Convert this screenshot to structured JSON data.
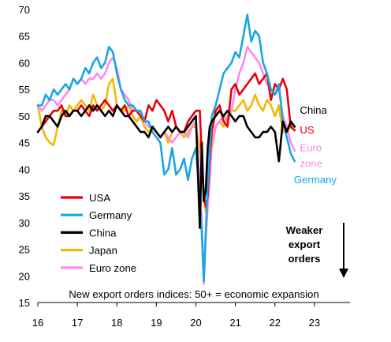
{
  "chart_data": {
    "type": "line",
    "caption": "New export orders indices: 50+ = economic expansion",
    "arrow_label": [
      "Weaker",
      "export",
      "orders"
    ],
    "xlim": [
      16,
      23.9
    ],
    "ylim": [
      15,
      70
    ],
    "x_ticks": [
      "16",
      "17",
      "18",
      "19",
      "20",
      "21",
      "22",
      "23"
    ],
    "x_tick_values": [
      16,
      17,
      18,
      19,
      20,
      21,
      22,
      23
    ],
    "y_ticks": [
      "15",
      "20",
      "25",
      "30",
      "35",
      "40",
      "45",
      "50",
      "55",
      "60",
      "65",
      "70"
    ],
    "y_tick_values": [
      15,
      20,
      25,
      30,
      35,
      40,
      45,
      50,
      55,
      60,
      65,
      70
    ],
    "legend": [
      {
        "label": "USA",
        "color": "#e8000b"
      },
      {
        "label": "Germany",
        "color": "#1aa7e0"
      },
      {
        "label": "China",
        "color": "#000000"
      },
      {
        "label": "Japan",
        "color": "#f5b700"
      },
      {
        "label": "Euro zone",
        "color": "#ff88ee"
      }
    ],
    "end_labels": [
      {
        "text": "China",
        "color": "#000000",
        "x": 22.55,
        "y": 51.0
      },
      {
        "text": "US",
        "color": "#e8000b",
        "x": 22.55,
        "y": 47.3
      },
      {
        "text": "Euro",
        "color": "#ff88ee",
        "x": 22.55,
        "y": 44.0
      },
      {
        "text": "zone",
        "color": "#ff88ee",
        "x": 22.55,
        "y": 41.0
      },
      {
        "text": "Germany",
        "color": "#1aa7e0",
        "x": 22.4,
        "y": 38.0
      }
    ],
    "series": [
      {
        "name": "Japan",
        "color": "#f5b700",
        "x": [
          16.0,
          16.1,
          16.2,
          16.3,
          16.4,
          16.5,
          16.6,
          16.7,
          16.8,
          16.9,
          17.0,
          17.1,
          17.2,
          17.3,
          17.4,
          17.5,
          17.6,
          17.7,
          17.8,
          17.9,
          18.0,
          18.1,
          18.2,
          18.3,
          18.4,
          18.5,
          18.6,
          18.7,
          18.8,
          18.9,
          19.0,
          19.1,
          19.2,
          19.3,
          19.4,
          19.5,
          19.6,
          19.7,
          19.8,
          19.9,
          20.0,
          20.1,
          20.15,
          20.2,
          20.25,
          20.3,
          20.35,
          20.4,
          20.5,
          20.6,
          20.7,
          20.8,
          20.9,
          21.0,
          21.1,
          21.2,
          21.3,
          21.4,
          21.5,
          21.6,
          21.7,
          21.8,
          21.9,
          22.0,
          22.1,
          22.2,
          22.3,
          22.4,
          22.5
        ],
        "y": [
          52,
          48,
          46,
          45,
          44.5,
          48,
          51,
          50,
          52,
          51,
          52,
          53,
          52,
          51,
          54,
          52,
          51,
          52,
          56,
          57,
          52,
          51,
          51,
          52,
          50,
          49,
          50,
          48,
          47,
          48,
          47,
          46,
          47,
          45,
          47,
          48,
          47,
          46,
          47,
          48,
          48,
          44,
          40,
          35,
          32,
          34,
          40,
          44,
          48,
          49,
          48,
          50,
          51,
          51,
          52,
          53,
          51,
          52,
          54,
          52,
          51,
          53,
          52,
          50,
          52,
          47,
          47,
          48,
          48
        ]
      },
      {
        "name": "Euro zone",
        "color": "#ff88ee",
        "x": [
          16.0,
          16.1,
          16.2,
          16.3,
          16.4,
          16.5,
          16.6,
          16.7,
          16.8,
          16.9,
          17.0,
          17.1,
          17.2,
          17.3,
          17.4,
          17.5,
          17.6,
          17.7,
          17.8,
          17.9,
          18.0,
          18.1,
          18.2,
          18.3,
          18.4,
          18.5,
          18.6,
          18.7,
          18.8,
          18.9,
          19.0,
          19.1,
          19.2,
          19.3,
          19.4,
          19.5,
          19.6,
          19.7,
          19.8,
          19.9,
          20.0,
          20.1,
          20.15,
          20.2,
          20.25,
          20.3,
          20.35,
          20.4,
          20.5,
          20.6,
          20.7,
          20.8,
          20.9,
          21.0,
          21.1,
          21.2,
          21.3,
          21.4,
          21.5,
          21.6,
          21.7,
          21.8,
          21.9,
          22.0,
          22.1,
          22.2,
          22.3,
          22.4,
          22.5
        ],
        "y": [
          52,
          51,
          52,
          53,
          53,
          52,
          53,
          54,
          55,
          57,
          56,
          57,
          56,
          57,
          57,
          58,
          57,
          58,
          60,
          61,
          59,
          55,
          54,
          53,
          51,
          51,
          50,
          49,
          48,
          48,
          47,
          46,
          47,
          46,
          45,
          46,
          47,
          47,
          46,
          48,
          49,
          38,
          30,
          18.5,
          27,
          33,
          38,
          45,
          48,
          49,
          50,
          49,
          51,
          55,
          58,
          60,
          63,
          62,
          61,
          60,
          58,
          56,
          55,
          54,
          55,
          50,
          48,
          45,
          43.5
        ]
      },
      {
        "name": "USA",
        "color": "#e8000b",
        "x": [
          16.0,
          16.1,
          16.2,
          16.3,
          16.4,
          16.5,
          16.6,
          16.7,
          16.8,
          16.9,
          17.0,
          17.1,
          17.2,
          17.3,
          17.4,
          17.5,
          17.6,
          17.7,
          17.8,
          17.9,
          18.0,
          18.1,
          18.2,
          18.3,
          18.4,
          18.5,
          18.6,
          18.7,
          18.8,
          18.9,
          19.0,
          19.1,
          19.2,
          19.3,
          19.4,
          19.5,
          19.6,
          19.7,
          19.8,
          19.9,
          20.0,
          20.1,
          20.15,
          20.2,
          20.25,
          20.3,
          20.35,
          20.4,
          20.5,
          20.6,
          20.7,
          20.8,
          20.9,
          21.0,
          21.1,
          21.2,
          21.3,
          21.4,
          21.5,
          21.6,
          21.7,
          21.8,
          21.9,
          22.0,
          22.1,
          22.2,
          22.3,
          22.4,
          22.5
        ],
        "y": [
          47,
          48,
          49,
          50,
          51,
          51,
          52,
          50,
          50,
          51,
          51,
          52,
          51,
          50,
          52,
          51,
          52,
          53,
          52,
          51,
          52,
          51,
          52,
          50,
          51,
          51,
          50,
          49,
          52,
          51,
          53,
          52,
          51,
          49,
          51,
          48,
          47,
          47,
          49,
          50,
          51,
          51,
          42,
          35,
          33,
          35,
          42,
          47,
          51,
          52,
          49,
          48,
          55,
          56,
          54,
          55,
          56,
          57,
          58,
          56,
          57,
          58,
          53,
          56,
          55,
          57,
          55,
          48,
          47.3
        ]
      },
      {
        "name": "Germany",
        "color": "#1aa7e0",
        "x": [
          16.0,
          16.1,
          16.2,
          16.3,
          16.4,
          16.5,
          16.6,
          16.7,
          16.8,
          16.9,
          17.0,
          17.1,
          17.2,
          17.3,
          17.4,
          17.5,
          17.6,
          17.7,
          17.8,
          17.9,
          18.0,
          18.1,
          18.2,
          18.3,
          18.4,
          18.5,
          18.6,
          18.7,
          18.8,
          18.9,
          19.0,
          19.1,
          19.2,
          19.3,
          19.4,
          19.5,
          19.6,
          19.7,
          19.8,
          19.9,
          20.0,
          20.1,
          20.15,
          20.2,
          20.25,
          20.3,
          20.35,
          20.4,
          20.5,
          20.6,
          20.7,
          20.8,
          20.9,
          21.0,
          21.1,
          21.2,
          21.3,
          21.4,
          21.5,
          21.6,
          21.7,
          21.8,
          21.9,
          22.0,
          22.1,
          22.2,
          22.3,
          22.4,
          22.5
        ],
        "y": [
          52,
          52,
          54,
          53,
          55,
          54,
          55,
          56,
          55,
          57,
          56,
          57,
          59,
          58,
          60,
          61,
          59,
          60,
          63,
          62,
          58,
          55,
          53,
          52,
          52,
          51,
          51,
          49,
          49,
          47,
          46,
          45,
          39,
          40,
          44,
          39,
          40,
          42,
          38,
          42,
          44,
          34,
          28,
          19,
          28,
          37,
          44,
          50,
          52,
          55,
          58,
          59,
          60,
          62,
          61,
          65,
          69,
          64,
          66,
          65,
          60,
          58,
          55,
          54,
          56,
          49,
          46,
          43,
          41.5
        ]
      },
      {
        "name": "China",
        "color": "#000000",
        "x": [
          16.0,
          16.1,
          16.2,
          16.3,
          16.4,
          16.5,
          16.6,
          16.7,
          16.8,
          16.9,
          17.0,
          17.1,
          17.2,
          17.3,
          17.4,
          17.5,
          17.6,
          17.7,
          17.8,
          17.9,
          18.0,
          18.1,
          18.2,
          18.3,
          18.4,
          18.5,
          18.6,
          18.7,
          18.8,
          18.9,
          19.0,
          19.1,
          19.2,
          19.3,
          19.4,
          19.5,
          19.6,
          19.7,
          19.8,
          19.9,
          20.0,
          20.1,
          20.15,
          20.2,
          20.25,
          20.3,
          20.35,
          20.4,
          20.5,
          20.6,
          20.7,
          20.8,
          20.9,
          21.0,
          21.1,
          21.2,
          21.3,
          21.4,
          21.5,
          21.6,
          21.7,
          21.8,
          21.9,
          22.0,
          22.1,
          22.2,
          22.3,
          22.4,
          22.5
        ],
        "y": [
          47,
          48,
          50,
          50,
          49,
          48,
          50,
          51,
          50,
          51,
          51,
          50,
          51,
          52,
          51,
          52,
          51,
          50,
          51,
          50,
          52,
          51,
          50,
          50,
          49,
          48,
          47,
          47,
          46,
          48,
          47,
          46,
          47,
          48,
          47,
          48,
          47,
          47,
          48,
          49,
          50,
          29,
          45,
          34,
          36,
          44,
          48,
          49,
          50,
          51,
          50,
          51,
          50,
          49,
          50,
          50,
          48,
          47,
          46,
          46,
          47,
          47,
          48,
          47,
          41.5,
          49,
          47,
          49,
          48
        ]
      }
    ]
  }
}
